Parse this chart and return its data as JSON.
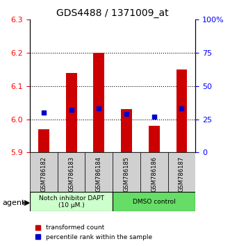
{
  "title": "GDS4488 / 1371009_at",
  "samples": [
    "GSM786182",
    "GSM786183",
    "GSM786184",
    "GSM786185",
    "GSM786186",
    "GSM786187"
  ],
  "red_values": [
    5.97,
    6.14,
    6.2,
    6.03,
    5.98,
    6.15
  ],
  "blue_values": [
    30,
    32,
    33,
    29,
    27,
    33
  ],
  "ylim_left": [
    5.9,
    6.3
  ],
  "ylim_right": [
    0,
    100
  ],
  "yticks_left": [
    5.9,
    6.0,
    6.1,
    6.2,
    6.3
  ],
  "yticks_right": [
    0,
    25,
    50,
    75,
    100
  ],
  "ytick_labels_right": [
    "0",
    "25",
    "50",
    "75",
    "100%"
  ],
  "group1_label": "Notch inhibitor DAPT\n(10 μM.)",
  "group2_label": "DMSO control",
  "group1_color": "#ccffcc",
  "group2_color": "#66dd66",
  "bar_color": "#cc0000",
  "dot_color": "#0000cc",
  "agent_label": "agent",
  "legend_red": "transformed count",
  "legend_blue": "percentile rank within the sample",
  "bar_width": 0.4,
  "baseline": 5.9
}
